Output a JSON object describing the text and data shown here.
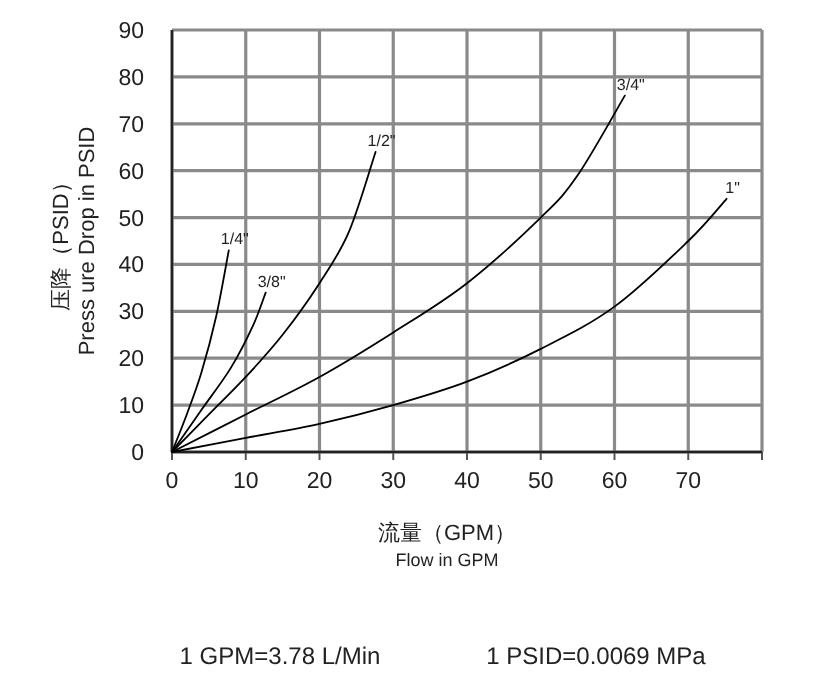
{
  "chart_data": {
    "type": "line",
    "xlabel": "流量（GPM）\nFlow in GPM",
    "ylabel": "压降（PSID）\nPress ure Drop in PSID",
    "xlim": [
      0,
      80
    ],
    "xticks": [
      0,
      10,
      20,
      30,
      40,
      50,
      60,
      70,
      {
        "value": 80,
        "label": null
      }
    ],
    "ylim": [
      0,
      90
    ],
    "yticks": [
      0,
      10,
      20,
      30,
      40,
      50,
      60,
      70,
      80,
      90
    ],
    "grid": true,
    "marker": "none",
    "line_style": "solid",
    "series": [
      {
        "name": "1/4\"",
        "color": "#000000",
        "x": [
          0,
          2,
          4,
          6,
          7.7
        ],
        "values": [
          0,
          8,
          17,
          29,
          43
        ]
      },
      {
        "name": "3/8\"",
        "color": "#000000",
        "x": [
          0,
          4,
          8,
          11,
          12.7
        ],
        "values": [
          0,
          9,
          18,
          27,
          34
        ]
      },
      {
        "name": "1/2\"",
        "color": "#000000",
        "x": [
          0,
          5,
          10,
          15,
          20,
          24,
          27.6
        ],
        "values": [
          0,
          8,
          16,
          25,
          36,
          47,
          64
        ]
      },
      {
        "name": "3/4\"",
        "color": "#000000",
        "x": [
          0,
          10,
          20,
          30,
          40,
          50,
          55,
          61.4
        ],
        "values": [
          0,
          8,
          16,
          25.5,
          36,
          50,
          59,
          76
        ]
      },
      {
        "name": "1\"",
        "color": "#000000",
        "x": [
          0,
          10,
          20,
          30,
          40,
          50,
          60,
          70,
          75.2
        ],
        "values": [
          0,
          3,
          6,
          10,
          15,
          22,
          31,
          45,
          54
        ]
      }
    ],
    "annotations": [
      "1 GPM=3.78 L/Min",
      "1 PSID=0.0069 MPa"
    ]
  }
}
